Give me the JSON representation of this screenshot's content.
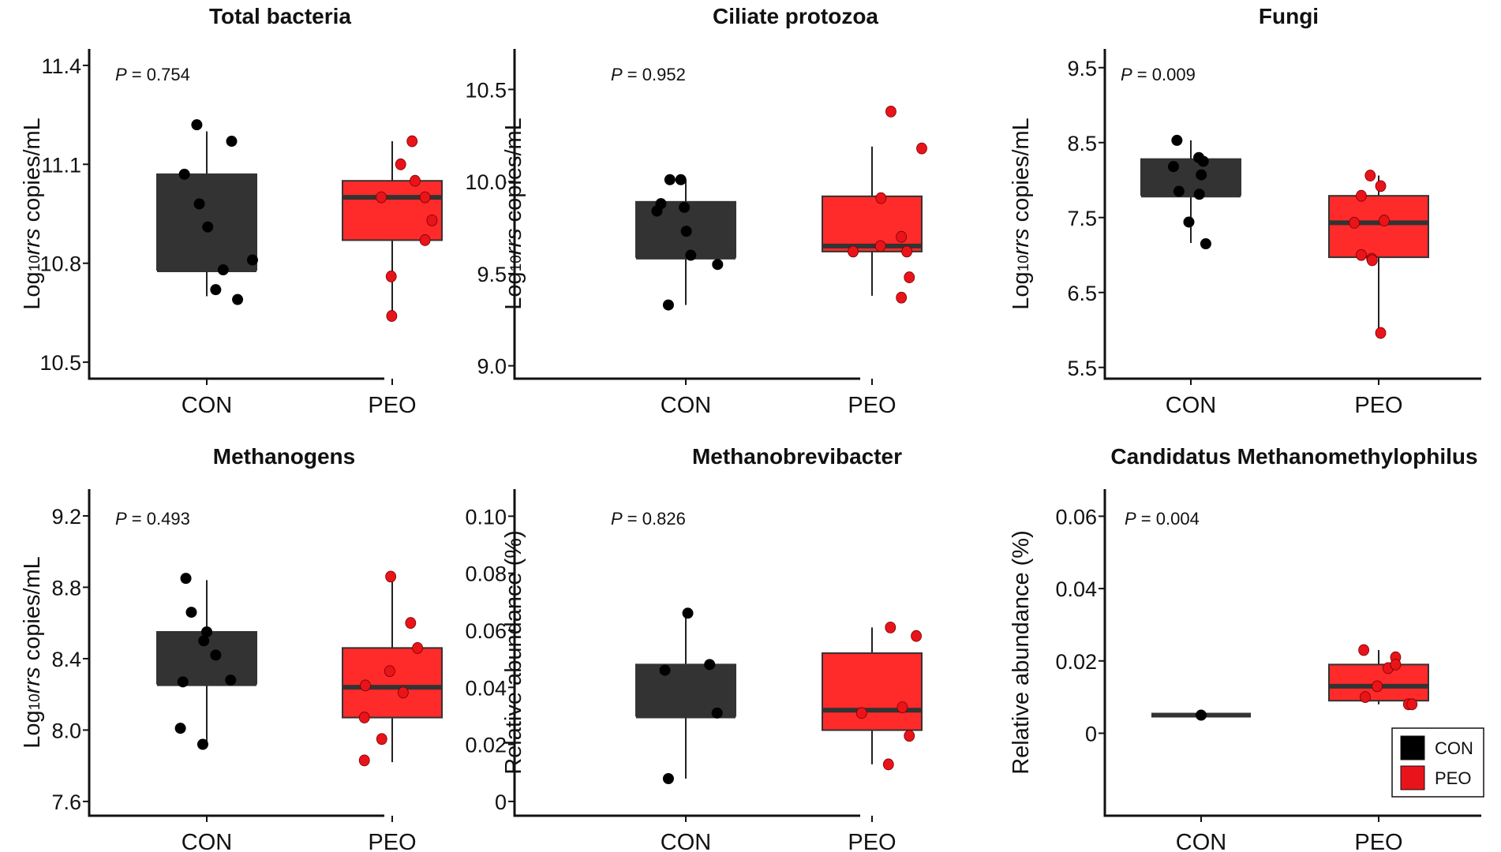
{
  "colors": {
    "CON": "#333333",
    "PEO": "#ff2a2a",
    "con_point": "#000000",
    "peo_point": "#e8141a",
    "median": "#333333"
  },
  "legend": {
    "entries": [
      {
        "label": "CON",
        "group": "CON"
      },
      {
        "label": "PEO",
        "group": "PEO"
      }
    ]
  },
  "chart_data": [
    {
      "type": "box",
      "title": "Total bacteria",
      "ylabel": {
        "pre": "Log",
        "sub": "10",
        "italic": "rrs",
        "post": " copies/mL"
      },
      "p_value": {
        "p": "P",
        "rest": " = 0.754"
      },
      "ylim": [
        10.45,
        11.45
      ],
      "yticks": [
        10.5,
        10.8,
        11.1,
        11.4
      ],
      "ytick_labels": [
        "10.5",
        "10.8",
        "11.1",
        "11.4"
      ],
      "categories": [
        "CON",
        "PEO"
      ],
      "boxes": [
        {
          "group": "CON",
          "min": 10.7,
          "q1": 10.78,
          "median": 10.78,
          "q3": 11.07,
          "max": 11.2
        },
        {
          "group": "PEO",
          "min": 10.64,
          "q1": 10.87,
          "median": 11.0,
          "q3": 11.05,
          "max": 11.17
        }
      ],
      "points": [
        {
          "group": "CON",
          "jitter": -0.45,
          "y": 11.07
        },
        {
          "group": "CON",
          "jitter": -0.2,
          "y": 11.22
        },
        {
          "group": "CON",
          "jitter": -0.15,
          "y": 10.98
        },
        {
          "group": "CON",
          "jitter": 0.02,
          "y": 10.91
        },
        {
          "group": "CON",
          "jitter": 0.18,
          "y": 10.72
        },
        {
          "group": "CON",
          "jitter": 0.33,
          "y": 10.78
        },
        {
          "group": "CON",
          "jitter": 0.5,
          "y": 11.17
        },
        {
          "group": "CON",
          "jitter": 0.62,
          "y": 10.69
        },
        {
          "group": "CON",
          "jitter": 0.92,
          "y": 10.81
        },
        {
          "group": "PEO",
          "jitter": -0.22,
          "y": 11.0
        },
        {
          "group": "PEO",
          "jitter": -0.02,
          "y": 10.76
        },
        {
          "group": "PEO",
          "jitter": -0.01,
          "y": 10.64
        },
        {
          "group": "PEO",
          "jitter": 0.17,
          "y": 11.1
        },
        {
          "group": "PEO",
          "jitter": 0.4,
          "y": 11.17
        },
        {
          "group": "PEO",
          "jitter": 0.46,
          "y": 11.05
        },
        {
          "group": "PEO",
          "jitter": 0.66,
          "y": 11.0
        },
        {
          "group": "PEO",
          "jitter": 0.66,
          "y": 10.87
        },
        {
          "group": "PEO",
          "jitter": 0.8,
          "y": 10.93
        }
      ]
    },
    {
      "type": "box",
      "title": "Ciliate protozoa",
      "ylabel": {
        "pre": "Log",
        "sub": "10",
        "italic": "rrs",
        "post": " copies/mL"
      },
      "p_value": {
        "p": "P",
        "rest": " = 0.952"
      },
      "ylim": [
        8.93,
        10.72
      ],
      "yticks": [
        9.0,
        9.5,
        10.0,
        10.5
      ],
      "ytick_labels": [
        "9.0",
        "9.5",
        "10.0",
        "10.5"
      ],
      "categories": [
        "CON",
        "PEO"
      ],
      "boxes": [
        {
          "group": "CON",
          "min": 9.33,
          "q1": 9.59,
          "median": 9.59,
          "q3": 9.89,
          "max": 10.01
        },
        {
          "group": "PEO",
          "min": 9.38,
          "q1": 9.62,
          "median": 9.65,
          "q3": 9.92,
          "max": 10.19
        }
      ],
      "points": [
        {
          "group": "CON",
          "jitter": -0.58,
          "y": 9.84
        },
        {
          "group": "CON",
          "jitter": -0.5,
          "y": 9.88
        },
        {
          "group": "CON",
          "jitter": -0.35,
          "y": 9.33
        },
        {
          "group": "CON",
          "jitter": -0.32,
          "y": 10.01
        },
        {
          "group": "CON",
          "jitter": -0.1,
          "y": 10.01
        },
        {
          "group": "CON",
          "jitter": -0.03,
          "y": 9.86
        },
        {
          "group": "CON",
          "jitter": 0.01,
          "y": 9.73
        },
        {
          "group": "CON",
          "jitter": 0.1,
          "y": 9.6
        },
        {
          "group": "CON",
          "jitter": 0.64,
          "y": 9.55
        },
        {
          "group": "PEO",
          "jitter": -0.38,
          "y": 9.62
        },
        {
          "group": "PEO",
          "jitter": 0.18,
          "y": 9.91
        },
        {
          "group": "PEO",
          "jitter": 0.17,
          "y": 9.65
        },
        {
          "group": "PEO",
          "jitter": 0.38,
          "y": 10.38
        },
        {
          "group": "PEO",
          "jitter": 0.59,
          "y": 9.7
        },
        {
          "group": "PEO",
          "jitter": 0.59,
          "y": 9.37
        },
        {
          "group": "PEO",
          "jitter": 0.7,
          "y": 9.62
        },
        {
          "group": "PEO",
          "jitter": 0.75,
          "y": 9.48
        },
        {
          "group": "PEO",
          "jitter": 1.0,
          "y": 10.18
        }
      ]
    },
    {
      "type": "box",
      "title": "Fungi",
      "ylabel": {
        "pre": "Log",
        "sub": "10",
        "italic": "rrs",
        "post": " copies/mL"
      },
      "p_value": {
        "p": "P",
        "rest": "  = 0.009"
      },
      "ylim": [
        5.35,
        9.75
      ],
      "yticks": [
        5.5,
        6.5,
        7.5,
        8.5,
        9.5
      ],
      "ytick_labels": [
        "5.5",
        "6.5",
        "7.5",
        "8.5",
        "9.5"
      ],
      "categories": [
        "CON",
        "PEO"
      ],
      "boxes": [
        {
          "group": "CON",
          "min": 7.16,
          "q1": 7.8,
          "median": 7.8,
          "q3": 8.28,
          "max": 8.53
        },
        {
          "group": "PEO",
          "min": 5.96,
          "q1": 6.97,
          "median": 7.43,
          "q3": 7.79,
          "max": 8.06
        }
      ],
      "points": [
        {
          "group": "CON",
          "jitter": -0.35,
          "y": 8.18
        },
        {
          "group": "CON",
          "jitter": -0.28,
          "y": 8.53
        },
        {
          "group": "CON",
          "jitter": -0.24,
          "y": 7.85
        },
        {
          "group": "CON",
          "jitter": -0.04,
          "y": 7.44
        },
        {
          "group": "CON",
          "jitter": 0.16,
          "y": 8.3
        },
        {
          "group": "CON",
          "jitter": 0.17,
          "y": 7.81
        },
        {
          "group": "CON",
          "jitter": 0.21,
          "y": 8.07
        },
        {
          "group": "CON",
          "jitter": 0.25,
          "y": 8.25
        },
        {
          "group": "CON",
          "jitter": 0.3,
          "y": 7.15
        },
        {
          "group": "PEO",
          "jitter": -0.49,
          "y": 7.43
        },
        {
          "group": "PEO",
          "jitter": -0.35,
          "y": 7.79
        },
        {
          "group": "PEO",
          "jitter": -0.35,
          "y": 7.0
        },
        {
          "group": "PEO",
          "jitter": -0.17,
          "y": 8.06
        },
        {
          "group": "PEO",
          "jitter": -0.14,
          "y": 6.95
        },
        {
          "group": "PEO",
          "jitter": -0.13,
          "y": 6.93
        },
        {
          "group": "PEO",
          "jitter": 0.04,
          "y": 7.92
        },
        {
          "group": "PEO",
          "jitter": 0.04,
          "y": 5.96
        },
        {
          "group": "PEO",
          "jitter": 0.11,
          "y": 7.46
        }
      ]
    },
    {
      "type": "box",
      "title": "Methanogens",
      "ylabel": {
        "pre": "Log",
        "sub": "10",
        "italic": "rrs",
        "post": " copies/mL"
      },
      "p_value": {
        "p": "P",
        "rest": " = 0.493"
      },
      "ylim": [
        7.52,
        9.35
      ],
      "yticks": [
        7.6,
        8.0,
        8.4,
        8.8,
        9.2
      ],
      "ytick_labels": [
        "7.6",
        "8.0",
        "8.4",
        "8.8",
        "9.2"
      ],
      "categories": [
        "CON",
        "PEO"
      ],
      "boxes": [
        {
          "group": "CON",
          "min": 7.92,
          "q1": 8.26,
          "median": 8.26,
          "q3": 8.55,
          "max": 8.84
        },
        {
          "group": "PEO",
          "min": 7.82,
          "q1": 8.07,
          "median": 8.24,
          "q3": 8.46,
          "max": 8.85
        }
      ],
      "points": [
        {
          "group": "CON",
          "jitter": -0.53,
          "y": 8.01
        },
        {
          "group": "CON",
          "jitter": -0.48,
          "y": 8.27
        },
        {
          "group": "CON",
          "jitter": -0.42,
          "y": 8.85
        },
        {
          "group": "CON",
          "jitter": -0.31,
          "y": 8.66
        },
        {
          "group": "CON",
          "jitter": -0.08,
          "y": 7.92
        },
        {
          "group": "CON",
          "jitter": -0.06,
          "y": 8.5
        },
        {
          "group": "CON",
          "jitter": 0.0,
          "y": 8.55
        },
        {
          "group": "CON",
          "jitter": 0.18,
          "y": 8.42
        },
        {
          "group": "CON",
          "jitter": 0.48,
          "y": 8.28
        },
        {
          "group": "PEO",
          "jitter": -0.56,
          "y": 8.07
        },
        {
          "group": "PEO",
          "jitter": -0.56,
          "y": 7.83
        },
        {
          "group": "PEO",
          "jitter": -0.54,
          "y": 8.25
        },
        {
          "group": "PEO",
          "jitter": -0.21,
          "y": 7.95
        },
        {
          "group": "PEO",
          "jitter": -0.05,
          "y": 8.33
        },
        {
          "group": "PEO",
          "jitter": -0.03,
          "y": 8.86
        },
        {
          "group": "PEO",
          "jitter": 0.22,
          "y": 8.21
        },
        {
          "group": "PEO",
          "jitter": 0.37,
          "y": 8.6
        },
        {
          "group": "PEO",
          "jitter": 0.51,
          "y": 8.46
        }
      ]
    },
    {
      "type": "box",
      "title": "Methanobrevibacter",
      "ylabel": {
        "pre": "Relative abundance (%)",
        "sub": "",
        "italic": "",
        "post": ""
      },
      "p_value": {
        "p": "P",
        "rest": " = 0.826"
      },
      "ylim": [
        -0.005,
        0.1095
      ],
      "yticks": [
        0,
        0.02,
        0.04,
        0.06,
        0.08,
        0.1
      ],
      "ytick_labels": [
        "0",
        "0.02",
        "0.04",
        "0.06",
        "0.08",
        "0.10"
      ],
      "categories": [
        "CON",
        "PEO"
      ],
      "boxes": [
        {
          "group": "CON",
          "min": 0.008,
          "q1": 0.03,
          "median": 0.03,
          "q3": 0.048,
          "max": 0.066
        },
        {
          "group": "PEO",
          "min": 0.013,
          "q1": 0.025,
          "median": 0.032,
          "q3": 0.052,
          "max": 0.061
        }
      ],
      "points": [
        {
          "group": "CON",
          "jitter": -0.42,
          "y": 0.046
        },
        {
          "group": "CON",
          "jitter": -0.35,
          "y": 0.008
        },
        {
          "group": "CON",
          "jitter": 0.04,
          "y": 0.066
        },
        {
          "group": "CON",
          "jitter": 0.48,
          "y": 0.048
        },
        {
          "group": "CON",
          "jitter": 0.63,
          "y": 0.031
        },
        {
          "group": "PEO",
          "jitter": -0.21,
          "y": 0.031
        },
        {
          "group": "PEO",
          "jitter": 0.37,
          "y": 0.061
        },
        {
          "group": "PEO",
          "jitter": 0.33,
          "y": 0.013
        },
        {
          "group": "PEO",
          "jitter": 0.61,
          "y": 0.033
        },
        {
          "group": "PEO",
          "jitter": 0.75,
          "y": 0.023
        },
        {
          "group": "PEO",
          "jitter": 0.89,
          "y": 0.058
        }
      ]
    },
    {
      "type": "box",
      "title": "Candidatus Methanomethylophilus",
      "ylabel": {
        "pre": "Relative abundance (%)",
        "sub": "",
        "italic": "",
        "post": ""
      },
      "p_value": {
        "p": "P",
        "rest": " = 0.004"
      },
      "ylim": [
        -0.0228,
        0.0675
      ],
      "yticks": [
        0,
        0.02,
        0.04,
        0.06
      ],
      "ytick_labels": [
        "0",
        "0.02",
        "0.04",
        "0.06"
      ],
      "categories": [
        "CON",
        "PEO"
      ],
      "boxes": [
        {
          "group": "CON",
          "min": 0.005,
          "q1": 0.005,
          "median": 0.005,
          "q3": 0.005,
          "max": 0.005
        },
        {
          "group": "PEO",
          "min": 0.008,
          "q1": 0.009,
          "median": 0.013,
          "q3": 0.019,
          "max": 0.023
        }
      ],
      "points": [
        {
          "group": "CON",
          "jitter": 0.0,
          "y": 0.005
        },
        {
          "group": "PEO",
          "jitter": -0.3,
          "y": 0.023
        },
        {
          "group": "PEO",
          "jitter": -0.27,
          "y": 0.01
        },
        {
          "group": "PEO",
          "jitter": -0.03,
          "y": 0.013
        },
        {
          "group": "PEO",
          "jitter": 0.19,
          "y": 0.018
        },
        {
          "group": "PEO",
          "jitter": 0.34,
          "y": 0.021
        },
        {
          "group": "PEO",
          "jitter": 0.34,
          "y": 0.019
        },
        {
          "group": "PEO",
          "jitter": 0.6,
          "y": 0.008
        },
        {
          "group": "PEO",
          "jitter": 0.67,
          "y": 0.008
        }
      ]
    }
  ]
}
